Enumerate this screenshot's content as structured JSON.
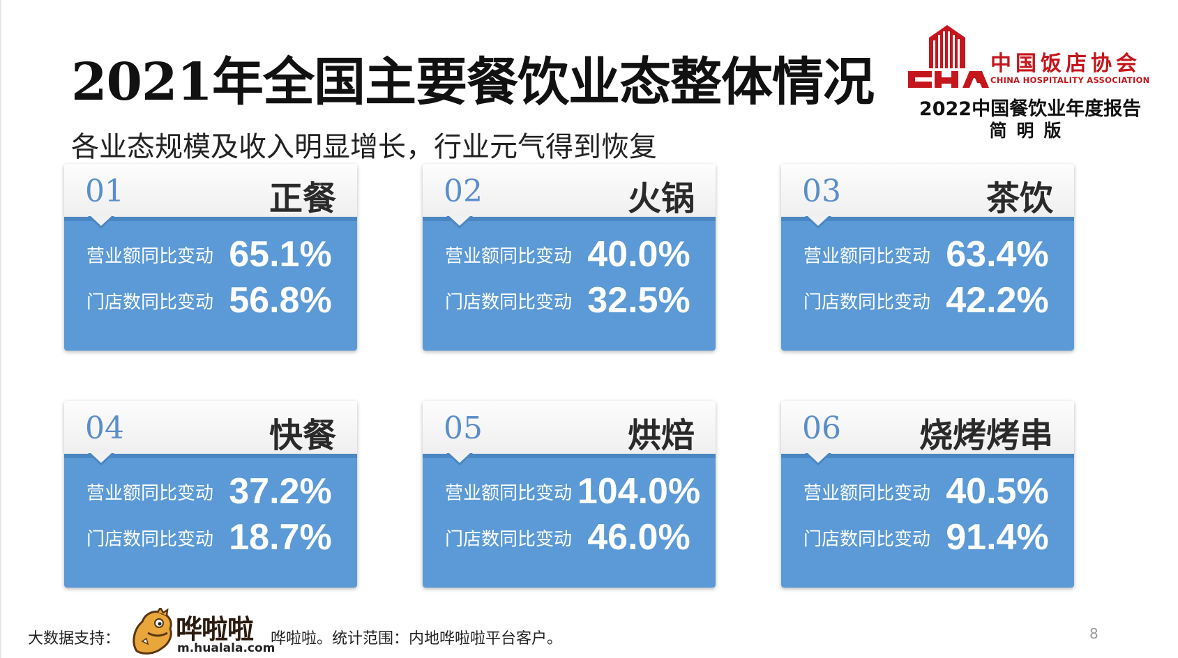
{
  "title": "2021年全国主要餐饮业态整体情况",
  "subtitle": "各业态规模及收入明显增长，行业元气得到恢复",
  "logo": {
    "association_cn": "中国饭店协会",
    "association_en": "CHINA HOSPITALITY ASSOCIATION",
    "report_title": "2022中国餐饮业年度报告",
    "edition": "简明版",
    "brand_color": "#c4161c"
  },
  "labels": {
    "revenue": "营业额同比变动",
    "stores": "门店数同比变动"
  },
  "cards": [
    {
      "num": "01",
      "name": "正餐",
      "revenue": "65.1%",
      "stores": "56.8%"
    },
    {
      "num": "02",
      "name": "火锅",
      "revenue": "40.0%",
      "stores": "32.5%"
    },
    {
      "num": "03",
      "name": "茶饮",
      "revenue": "63.4%",
      "stores": "42.2%"
    },
    {
      "num": "04",
      "name": "快餐",
      "revenue": "37.2%",
      "stores": "18.7%"
    },
    {
      "num": "05",
      "name": "烘焙",
      "revenue": "104.0%",
      "stores": "46.0%"
    },
    {
      "num": "06",
      "name": "烧烤烤串",
      "revenue": "40.5%",
      "stores": "91.4%"
    }
  ],
  "footer": {
    "data_support": "大数据支持：",
    "brand_name": "哗啦啦",
    "brand_url": "m.hualala.com",
    "note": "哗啦啦。统计范围：内地哗啦啦平台客户。",
    "page": "8"
  },
  "colors": {
    "card_blue": "#5b9ad6",
    "card_blue_dark": "#4a86c2",
    "number_blue": "#5b8ec9"
  },
  "icons": {
    "logo_mark": "cha-building-logo-icon",
    "mascot": "hualala-mascot-icon"
  }
}
